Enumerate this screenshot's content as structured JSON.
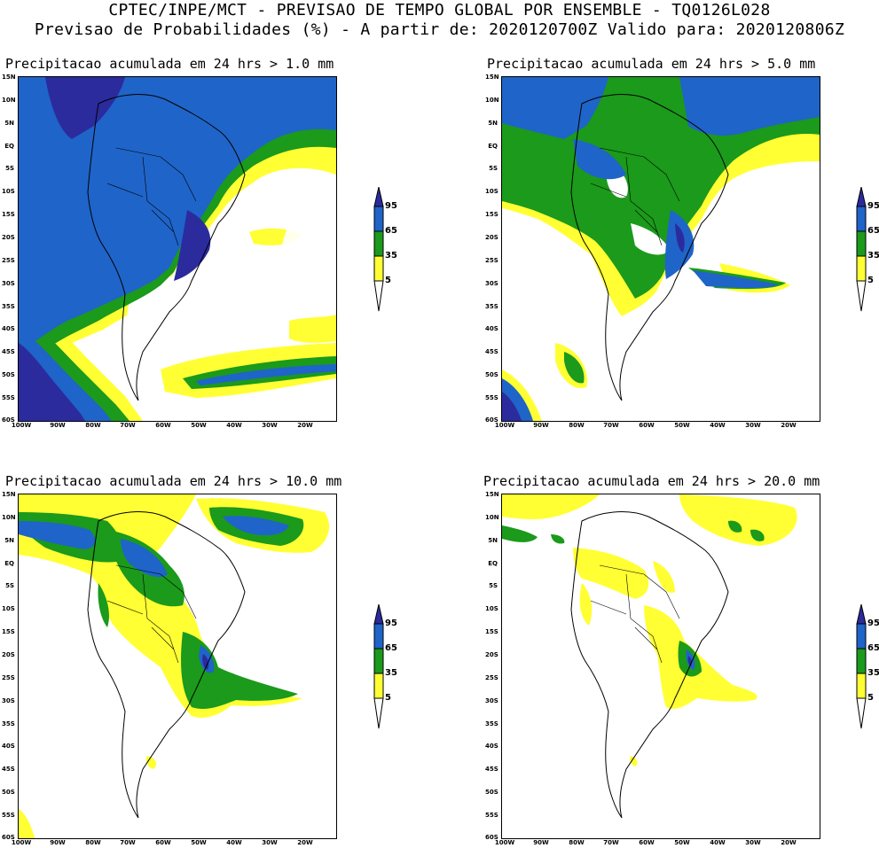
{
  "header": {
    "line1": "CPTEC/INPE/MCT - PREVISAO DE TEMPO GLOBAL POR ENSEMBLE - TQ0126L028",
    "line2": "Previsao de Probabilidades (%) -  A partir de: 2020120700Z  Valido para: 2020120806Z"
  },
  "lat_labels": [
    "15N",
    "10N",
    "5N",
    "EQ",
    "5S",
    "10S",
    "15S",
    "20S",
    "25S",
    "30S",
    "35S",
    "40S",
    "45S",
    "50S",
    "55S",
    "60S"
  ],
  "lon_labels": [
    "100W",
    "90W",
    "80W",
    "70W",
    "60W",
    "50W",
    "40W",
    "30W",
    "20W"
  ],
  "colorbar": {
    "levels": [
      "95",
      "65",
      "35",
      "5"
    ],
    "colors": {
      "c95": "#2b2b9e",
      "c65": "#1f64c8",
      "c35": "#1b9a1b",
      "c5": "#ffff33"
    }
  },
  "panels": [
    {
      "title": "Precipitacao acumulada em 24 hrs > 1.0 mm"
    },
    {
      "title": "Precipitacao acumulada em 24 hrs > 5.0 mm"
    },
    {
      "title": "Precipitacao acumulada em 24 hrs > 10.0 mm"
    },
    {
      "title": "Precipitacao acumulada em 24 hrs > 20.0 mm"
    }
  ]
}
